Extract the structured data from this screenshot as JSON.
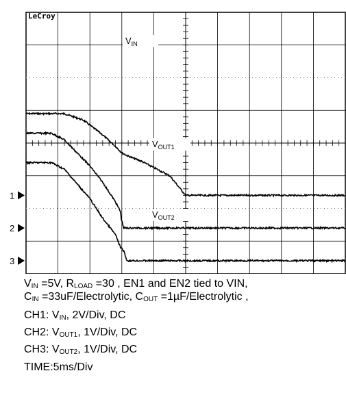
{
  "chart_data": {
    "type": "line",
    "instrument_brand": "LeCroy",
    "grid": true,
    "divisions": {
      "x": 10,
      "y": 8
    },
    "x_axis": {
      "unit": "ms",
      "per_div": 5,
      "range": [
        0,
        50
      ]
    },
    "channel_markers": [
      "1",
      "2",
      "3"
    ],
    "series": [
      {
        "id": "CH1",
        "label_main": "V",
        "label_sub": "IN",
        "ground_div": 2.4,
        "volts_per_div": 2,
        "color": "#000000",
        "x": [
          0,
          6,
          9,
          12,
          14,
          15,
          16,
          18,
          22.5,
          25,
          50
        ],
        "y": [
          5.0,
          5.0,
          4.6,
          3.7,
          3.0,
          2.6,
          2.4,
          2.1,
          1.2,
          0.0,
          0.0
        ]
      },
      {
        "id": "CH2",
        "label_main": "V",
        "label_sub": "OUT1",
        "ground_div": 1.4,
        "volts_per_div": 1,
        "color": "#000000",
        "x": [
          0,
          4,
          6,
          10,
          12,
          14,
          14.8,
          14.9,
          15.3,
          50
        ],
        "y": [
          2.9,
          2.9,
          2.7,
          1.9,
          1.4,
          0.8,
          0.5,
          0.3,
          0.0,
          0.0
        ]
      },
      {
        "id": "CH3",
        "label_main": "V",
        "label_sub": "OUT2",
        "ground_div": 0.4,
        "volts_per_div": 1,
        "color": "#000000",
        "x": [
          0,
          4,
          6,
          10,
          12,
          14,
          14.8,
          15.3,
          15.8,
          50
        ],
        "y": [
          3.0,
          3.0,
          2.8,
          1.9,
          1.3,
          0.8,
          0.4,
          0.3,
          0.0,
          0.0
        ]
      }
    ]
  },
  "caption": {
    "line1": {
      "v": "V",
      "v_sub": "IN",
      "eq1": " =5V, R",
      "r_sub": "LOAD",
      "eq2": " =30",
      "rest": "   , EN1 and EN2 tied to VIN,"
    },
    "line2": {
      "c": "C",
      "c_sub": "IN",
      "eq1": " =33uF/Electrolytic, C",
      "cout_sub": "OUT",
      "eq2": " =1",
      "mu": "µ",
      "rest": "F/Electrolytic ,"
    },
    "ch1": {
      "pre": "CH1: V",
      "sub": "IN",
      "post": ", 2V/Div, DC"
    },
    "ch2": {
      "pre": "CH2: V",
      "sub": "OUT1",
      "post": ", 1V/Div, DC"
    },
    "ch3": {
      "pre": "CH3: V",
      "sub": "OUT2",
      "post": ", 1V/Div, DC"
    },
    "time": "TIME:5ms/Div"
  }
}
